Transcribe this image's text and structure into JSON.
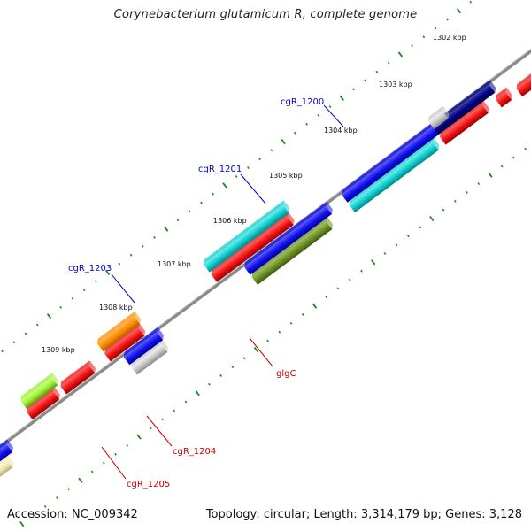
{
  "title": "Corynebacterium glutamicum R, complete genome",
  "accession": {
    "label": "Accession:",
    "value": "NC_009342"
  },
  "topology": {
    "topology_label": "Topology:",
    "topology_value": "circular;",
    "length_label": "Length:",
    "length_value": "3,314,179 bp;",
    "genes_label": "Genes:",
    "genes_value": "3,128"
  },
  "ruler": {
    "tick_labels": [
      "1302 kbp",
      "1303 kbp",
      "1304 kbp",
      "1305 kbp",
      "1306 kbp",
      "1307 kbp",
      "1308 kbp",
      "1309 kbp"
    ]
  },
  "genes": {
    "cgR_1200": "cgR_1200",
    "cgR_1201": "cgR_1201",
    "cgR_1203": "cgR_1203",
    "glgC": "glgC",
    "cgR_1204": "cgR_1204",
    "cgR_1205": "cgR_1205"
  },
  "colors": {
    "backbone": "#7a7a7a",
    "tick_marks": "#1a8a1a",
    "forward_label": "#0000cc",
    "reverse_label": "#cc0000",
    "gene_red": "#ee1111",
    "gene_blue": "#1111ee",
    "gene_cyan": "#11cccc",
    "gene_olive": "#6b8e23",
    "gene_silver": "#c8c8c8",
    "gene_navy": "#000080",
    "gene_orange": "#ff8c00",
    "gene_lime": "#99ee33",
    "gene_khaki": "#eee8aa"
  }
}
